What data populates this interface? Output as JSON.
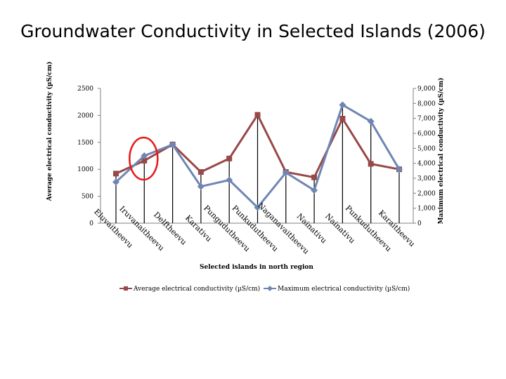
{
  "page_title": "Groundwater Conductivity in Selected Islands (2006)",
  "chart_data": {
    "type": "line",
    "title": "Groundwater Conductivity in Selected Islands (2006)",
    "xlabel": "Selected islands in north region",
    "ylabel_left": "Average electrical conductivity (µS/cm)",
    "ylabel_right": "Maximum electrical conductivity (µS/cm)",
    "categories": [
      "Eluvaitheevu",
      "Iruvanaitheevu",
      "Delftheevu",
      "Karativu",
      "Pungudutheevu",
      "Punkudutheevu",
      "Naganavaitheevu",
      "Nainativu",
      "Nainativu",
      "Punkudutheevu",
      "Karaitheevu"
    ],
    "category_labels": [
      "Eluvaitheevu",
      "Iruvanaitheevu",
      "Delftheevu",
      "Karativu",
      "Pungudutheevu",
      "Punkudutheevu",
      "Naganavaitheevu",
      "Nainativu",
      "Nainativu",
      "Punkudutheevu",
      "Karaitheevu"
    ],
    "display_labels": [
      "Eluvaitheevu",
      "Iruvanaitheevu",
      "Delftheevu",
      "Karativu",
      "Pungudutheevu",
      "Punkudutheevu",
      "Naganavaitheevu",
      "Nainativu",
      "Nainativu",
      "Punkudutheevu",
      "Karaitheevu"
    ],
    "x_tick_labels": [
      "Eluvaitheevu",
      "Iruvanaitheevu",
      "Delftheevu",
      "Karativu",
      "Pungudutheevu",
      "Punkudutheevu",
      "Naganavaitheevu",
      "Nainativu",
      "Nainativu",
      "Punkudutheevu",
      "Karaitheevu"
    ],
    "y_left": {
      "lim": [
        0,
        2500
      ],
      "ticks": [
        0,
        500,
        1000,
        1500,
        2000,
        2500
      ],
      "tick_labels": [
        "0",
        "500",
        "1000",
        "1500",
        "2000",
        "2500"
      ]
    },
    "y_right": {
      "lim": [
        0,
        9000
      ],
      "ticks": [
        0,
        1000,
        2000,
        3000,
        4000,
        5000,
        6000,
        7000,
        8000,
        9000
      ],
      "tick_labels": [
        "0",
        "1,000",
        "2,000",
        "3,000",
        "4,000",
        "5,000",
        "6,000",
        "7,000",
        "8,000",
        "9,000"
      ]
    },
    "series": [
      {
        "name": "Average electrical conductivity (µS/cm)",
        "axis": "left",
        "color": "#984848",
        "marker": "square",
        "values": [
          920,
          1160,
          1460,
          950,
          1200,
          2010,
          950,
          850,
          1940,
          1100,
          1000
        ]
      },
      {
        "name": "Maximum electrical conductivity (µS/cm)",
        "axis": "right",
        "color": "#6f86b4",
        "marker": "diamond",
        "values": [
          2750,
          4500,
          5250,
          2450,
          2880,
          1050,
          3380,
          2200,
          7900,
          6800,
          3600
        ]
      }
    ],
    "highlight": {
      "category_index": 1,
      "shape": "ellipse",
      "color": "#e8191a"
    },
    "legend_position": "bottom"
  }
}
